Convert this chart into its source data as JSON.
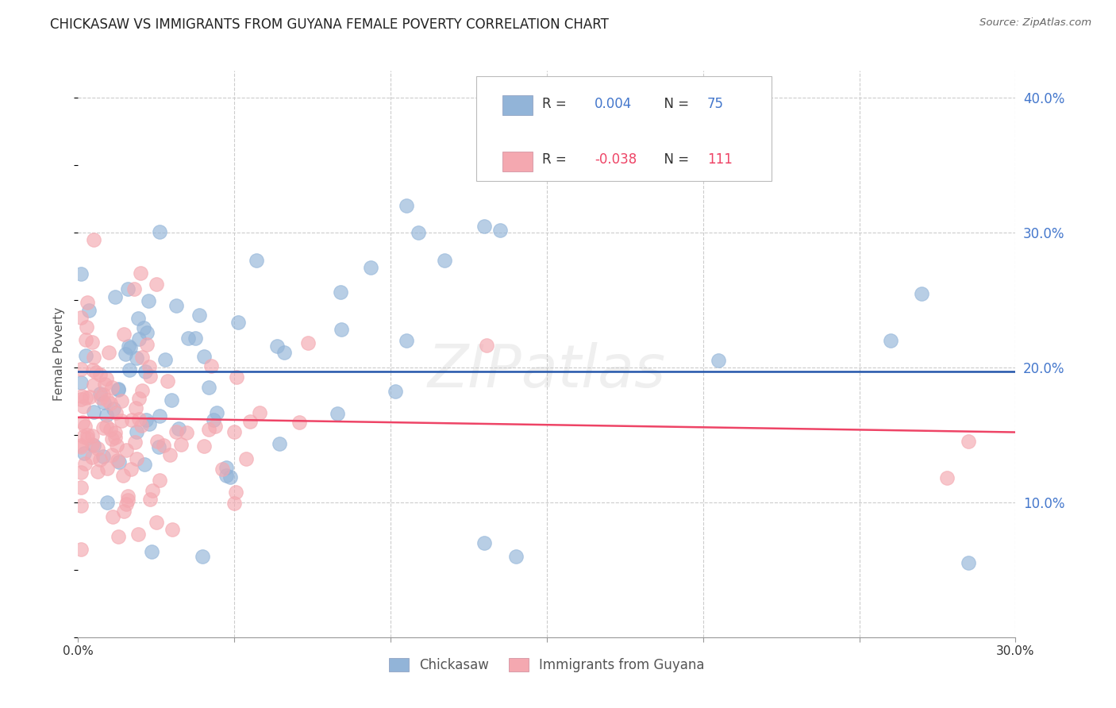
{
  "title": "CHICKASAW VS IMMIGRANTS FROM GUYANA FEMALE POVERTY CORRELATION CHART",
  "source": "Source: ZipAtlas.com",
  "ylabel_label": "Female Poverty",
  "xlim": [
    0.0,
    0.3
  ],
  "ylim": [
    0.0,
    0.42
  ],
  "chickasaw_R": 0.004,
  "chickasaw_N": 75,
  "guyana_R": -0.038,
  "guyana_N": 111,
  "chickasaw_color": "#92b4d8",
  "guyana_color": "#f4a8b0",
  "chickasaw_line_color": "#2255aa",
  "guyana_line_color": "#ee4466",
  "legend_text_color": "#4477cc",
  "legend_R_guyana_color": "#ee4466",
  "watermark": "ZIPatlas",
  "grid_color": "#cccccc",
  "title_color": "#222222",
  "source_color": "#666666",
  "ylabel_color": "#555555",
  "xtick_color": "#333333",
  "ytick_color": "#4477cc"
}
